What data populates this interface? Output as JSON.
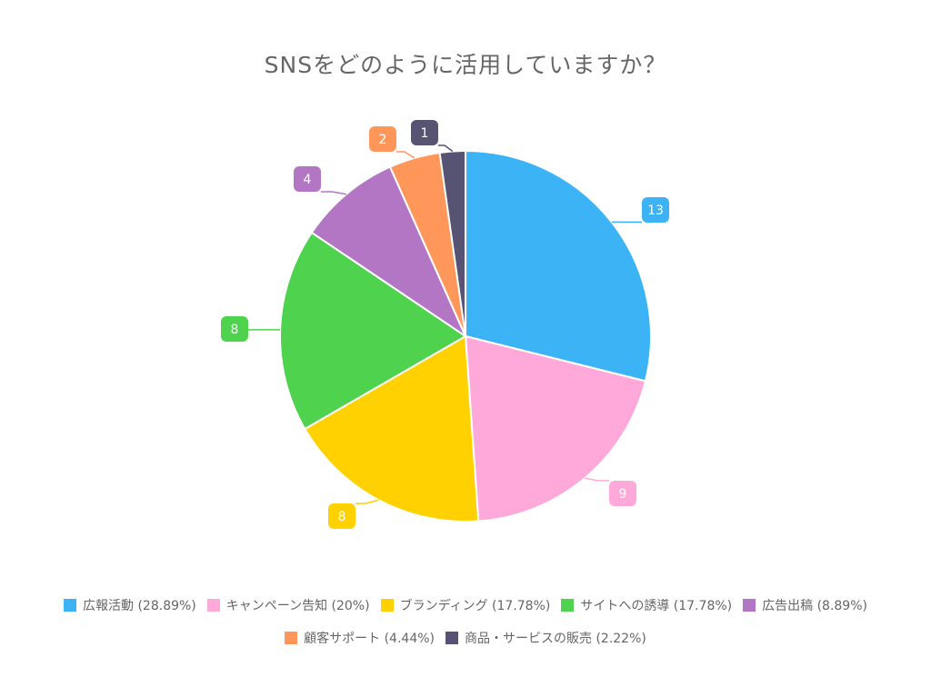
{
  "chart_data": {
    "type": "pie",
    "title": "SNSをどのように活用していますか？",
    "slices": [
      {
        "label": "広報活動",
        "value": 13,
        "percent": "28.89%",
        "color": "#3BB3F5"
      },
      {
        "label": "キャンペーン告知",
        "value": 9,
        "percent": "20%",
        "color": "#FFA8DA"
      },
      {
        "label": "ブランディング",
        "value": 8,
        "percent": "17.78%",
        "color": "#FFD100"
      },
      {
        "label": "サイトへの誘導",
        "value": 8,
        "percent": "17.78%",
        "color": "#4FD24E"
      },
      {
        "label": "広告出稿",
        "value": 4,
        "percent": "8.89%",
        "color": "#B276C4"
      },
      {
        "label": "顧客サポート",
        "value": 2,
        "percent": "4.44%",
        "color": "#FF975A"
      },
      {
        "label": "商品・サービスの販売",
        "value": 1,
        "percent": "2.22%",
        "color": "#565373"
      }
    ],
    "legend_position": "bottom",
    "legend_entries": [
      "広報活動 (28.89%)",
      "キャンペーン告知 (20%)",
      "ブランディング (17.78%)",
      "サイトへの誘導 (17.78%)",
      "広告出稿 (8.89%)",
      "顧客サポート (4.44%)",
      "商品・サービスの販売 (2.22%)"
    ]
  }
}
